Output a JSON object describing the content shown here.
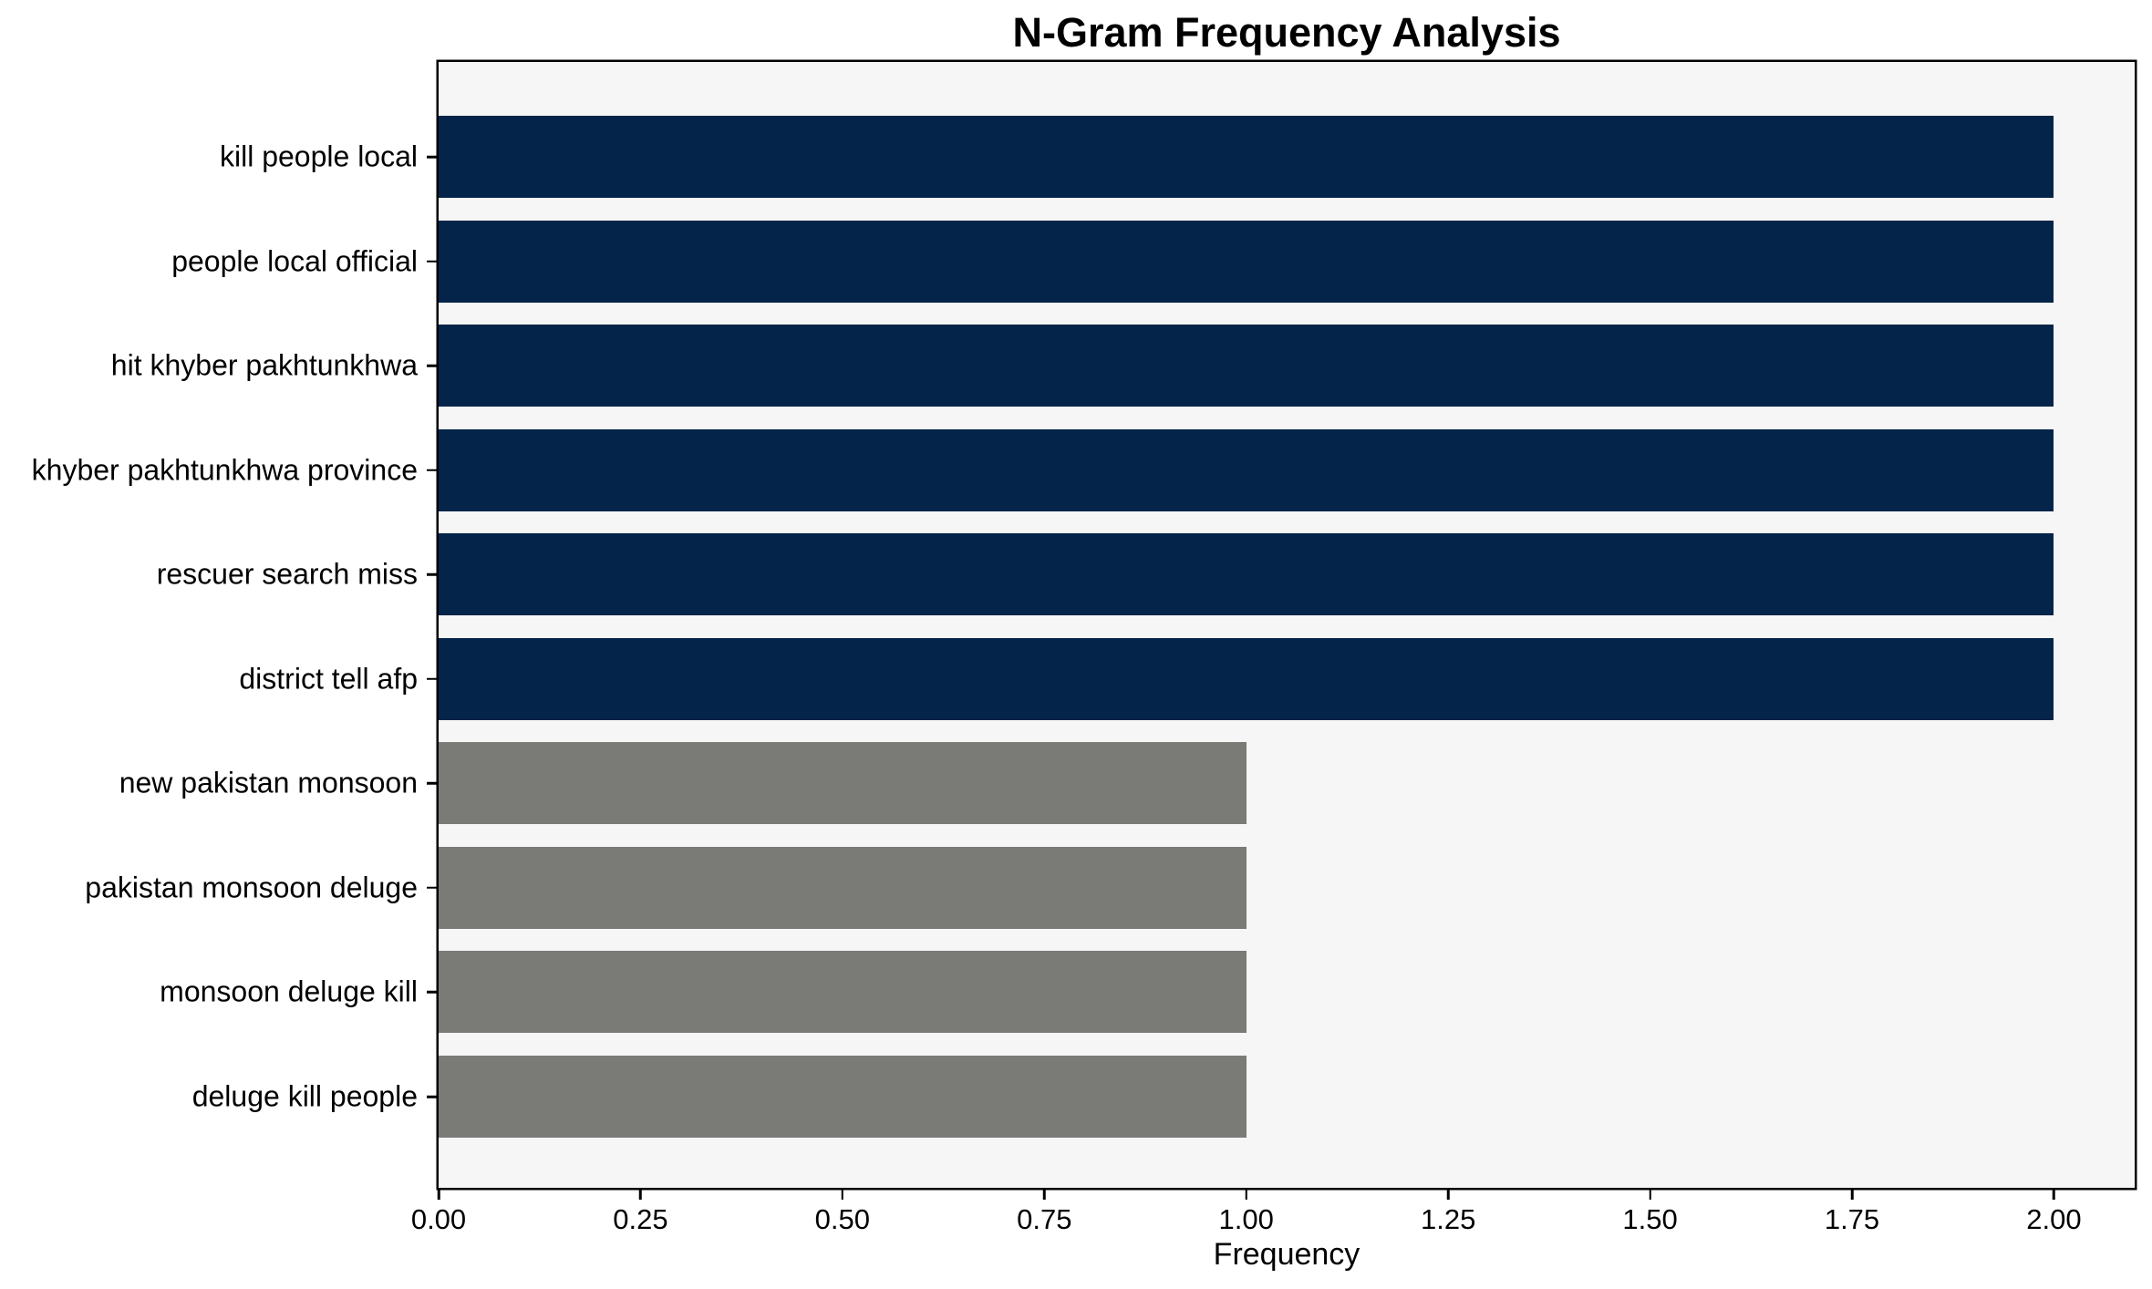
{
  "chart_data": {
    "type": "bar",
    "orientation": "horizontal",
    "title": "N-Gram Frequency Analysis",
    "xlabel": "Frequency",
    "ylabel": "",
    "categories": [
      "kill people local",
      "people local official",
      "hit khyber pakhtunkhwa",
      "khyber pakhtunkhwa province",
      "rescuer search miss",
      "district tell afp",
      "new pakistan monsoon",
      "pakistan monsoon deluge",
      "monsoon deluge kill",
      "deluge kill people"
    ],
    "values": [
      2,
      2,
      2,
      2,
      2,
      2,
      1,
      1,
      1,
      1
    ],
    "bar_colors": [
      "#052449",
      "#052449",
      "#052449",
      "#052449",
      "#052449",
      "#052449",
      "#7a7a77",
      "#7a7a77",
      "#7a7a77",
      "#7a7a77"
    ],
    "xlim": [
      0,
      2.1
    ],
    "xticks": [
      0,
      0.25,
      0.5,
      0.75,
      1.0,
      1.25,
      1.5,
      1.75,
      2.0
    ],
    "xtick_labels": [
      "0.00",
      "0.25",
      "0.50",
      "0.75",
      "1.00",
      "1.25",
      "1.50",
      "1.75",
      "2.00"
    ],
    "grid": false,
    "legend": null,
    "colors": {
      "highlight_bar": "#052449",
      "default_bar": "#7a7a77",
      "plot_background": "#f6f6f6",
      "figure_background": "#ffffff",
      "spine": "#000000",
      "text": "#000000"
    }
  }
}
